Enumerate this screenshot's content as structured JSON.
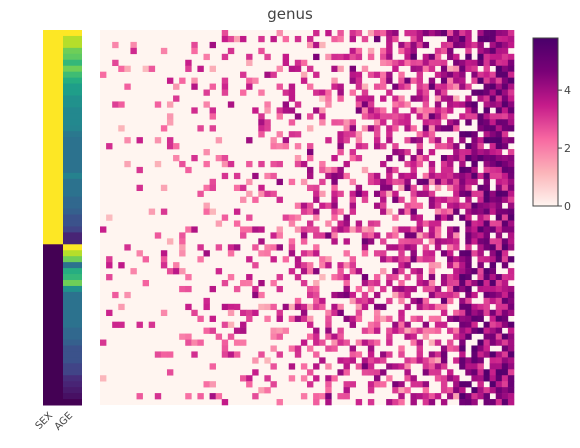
{
  "chart_data": {
    "type": "heatmap",
    "title": "genus",
    "annotation_columns": [
      "SEX",
      "AGE"
    ],
    "sex_groups": [
      {
        "label": "",
        "count": 36,
        "color": "#fde725"
      },
      {
        "label": "",
        "count": 27,
        "color": "#440154"
      }
    ],
    "age_colors": [
      "#fde725",
      "#b5de2b",
      "#b5de2b",
      "#6ece58",
      "#5ec962",
      "#35b779",
      "#6ece58",
      "#3fbc73",
      "#26ad81",
      "#1f9e89",
      "#1f9e89",
      "#21918c",
      "#21918c",
      "#23888e",
      "#23888e",
      "#23888e",
      "#25858e",
      "#2a788e",
      "#2c728e",
      "#2c728e",
      "#2c728e",
      "#2c728e",
      "#2c728e",
      "#2c728e",
      "#26828e",
      "#2c728e",
      "#2c728e",
      "#2c728e",
      "#31688e",
      "#31688e",
      "#35608d",
      "#3b528b",
      "#3b528b",
      "#414487",
      "#482475",
      "#482475",
      "#fde725",
      "#b5de2b",
      "#6ece58",
      "#2c728e",
      "#26ad81",
      "#35b779",
      "#6ece58",
      "#21918c",
      "#2c728e",
      "#2c728e",
      "#2c728e",
      "#2c728e",
      "#2c728e",
      "#2c728e",
      "#31688e",
      "#31688e",
      "#35608d",
      "#3b528b",
      "#3b528b",
      "#3b528b",
      "#414487",
      "#414487",
      "#472d7b",
      "#482475",
      "#481a6c",
      "#471063",
      "#440154"
    ],
    "grid": {
      "rows": 63,
      "cols": 68
    },
    "zmin": 0,
    "zmax": 5.8,
    "colorbar": {
      "ticks": [
        0,
        2,
        4
      ],
      "colors": [
        "#fff5f0",
        "#fbb4b9",
        "#f768a1",
        "#c51b8a",
        "#7a0177",
        "#49006a"
      ]
    }
  }
}
